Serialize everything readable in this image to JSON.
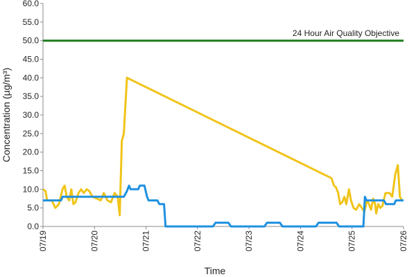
{
  "chart_data": {
    "type": "line",
    "xlabel": "Time",
    "ylabel": "Concentration (µg/m³)",
    "annotation": "24 Hour Air Quality Objective",
    "xlim": [
      0,
      7
    ],
    "xticks": [
      {
        "value": 0,
        "label": "07/19"
      },
      {
        "value": 1,
        "label": "07/20"
      },
      {
        "value": 2,
        "label": "07/21"
      },
      {
        "value": 3,
        "label": "07/22"
      },
      {
        "value": 4,
        "label": "07/23"
      },
      {
        "value": 5,
        "label": "07/24"
      },
      {
        "value": 6,
        "label": "07/25"
      },
      {
        "value": 7,
        "label": "07/26"
      }
    ],
    "ylim": [
      0,
      60
    ],
    "yticks": [
      {
        "value": 0,
        "label": "0.0"
      },
      {
        "value": 5,
        "label": "5.0"
      },
      {
        "value": 10,
        "label": "10.0"
      },
      {
        "value": 15,
        "label": "15.0"
      },
      {
        "value": 20,
        "label": "20.0"
      },
      {
        "value": 25,
        "label": "25.0"
      },
      {
        "value": 30,
        "label": "30.0"
      },
      {
        "value": 35,
        "label": "35.0"
      },
      {
        "value": 40,
        "label": "40.0"
      },
      {
        "value": 45,
        "label": "45.0"
      },
      {
        "value": 50,
        "label": "50.0"
      },
      {
        "value": 55,
        "label": "55.0"
      },
      {
        "value": 60,
        "label": "60.0"
      }
    ],
    "grid": false,
    "series": [
      {
        "color": "#1f7a1f",
        "x": [
          0,
          7
        ],
        "values": [
          50,
          50
        ]
      },
      {
        "color": "#f0c419",
        "x": [
          0,
          0.05,
          0.08,
          0.17,
          0.24,
          0.31,
          0.38,
          0.42,
          0.46,
          0.51,
          0.55,
          0.59,
          0.63,
          0.69,
          0.74,
          0.79,
          0.85,
          0.9,
          0.96,
          1.05,
          1.12,
          1.18,
          1.25,
          1.32,
          1.39,
          1.45,
          1.49,
          1.53,
          1.57,
          1.63,
          5.6,
          5.65,
          5.69,
          5.73,
          5.77,
          5.81,
          5.85,
          5.89,
          5.94,
          5.98,
          6.03,
          6.08,
          6.14,
          6.19,
          6.24,
          6.29,
          6.33,
          6.37,
          6.41,
          6.45,
          6.47,
          6.51,
          6.55,
          6.59,
          6.65,
          6.73,
          6.78,
          6.84,
          6.89,
          6.93,
          6.97
        ],
        "values": [
          10,
          9.5,
          7,
          7,
          5,
          6,
          10,
          11,
          8,
          7,
          10,
          6,
          6.5,
          9,
          10,
          9,
          10,
          9.5,
          8,
          7.5,
          7,
          9,
          7,
          6.5,
          9,
          8,
          3,
          23,
          25,
          40,
          13,
          11,
          10.5,
          9,
          6,
          6.5,
          8,
          6,
          10,
          7,
          5,
          4.5,
          6,
          5,
          4,
          7,
          6,
          4.5,
          7.5,
          6,
          3.5,
          6,
          5,
          5.5,
          9,
          9,
          8,
          14,
          16.5,
          8,
          7
        ]
      },
      {
        "color": "#1e90e0",
        "x": [
          0,
          0.35,
          0.38,
          1.57,
          1.63,
          1.67,
          1.7,
          1.85,
          1.88,
          1.97,
          2.02,
          2.05,
          2.22,
          2.26,
          2.35,
          2.38,
          3.3,
          3.35,
          3.6,
          3.65,
          4.3,
          4.35,
          4.6,
          4.65,
          5.3,
          5.35,
          5.7,
          5.75,
          6.22,
          6.25,
          6.28,
          6.62,
          6.66,
          6.82,
          6.85,
          7
        ],
        "values": [
          7,
          7,
          8,
          8,
          9.5,
          11,
          10,
          10,
          11,
          11,
          8,
          7,
          7,
          6,
          6,
          0,
          0,
          1,
          1,
          0,
          0,
          1,
          1,
          0,
          0,
          1,
          1,
          0,
          0,
          8,
          7,
          7,
          6,
          6,
          7,
          7
        ]
      }
    ]
  }
}
